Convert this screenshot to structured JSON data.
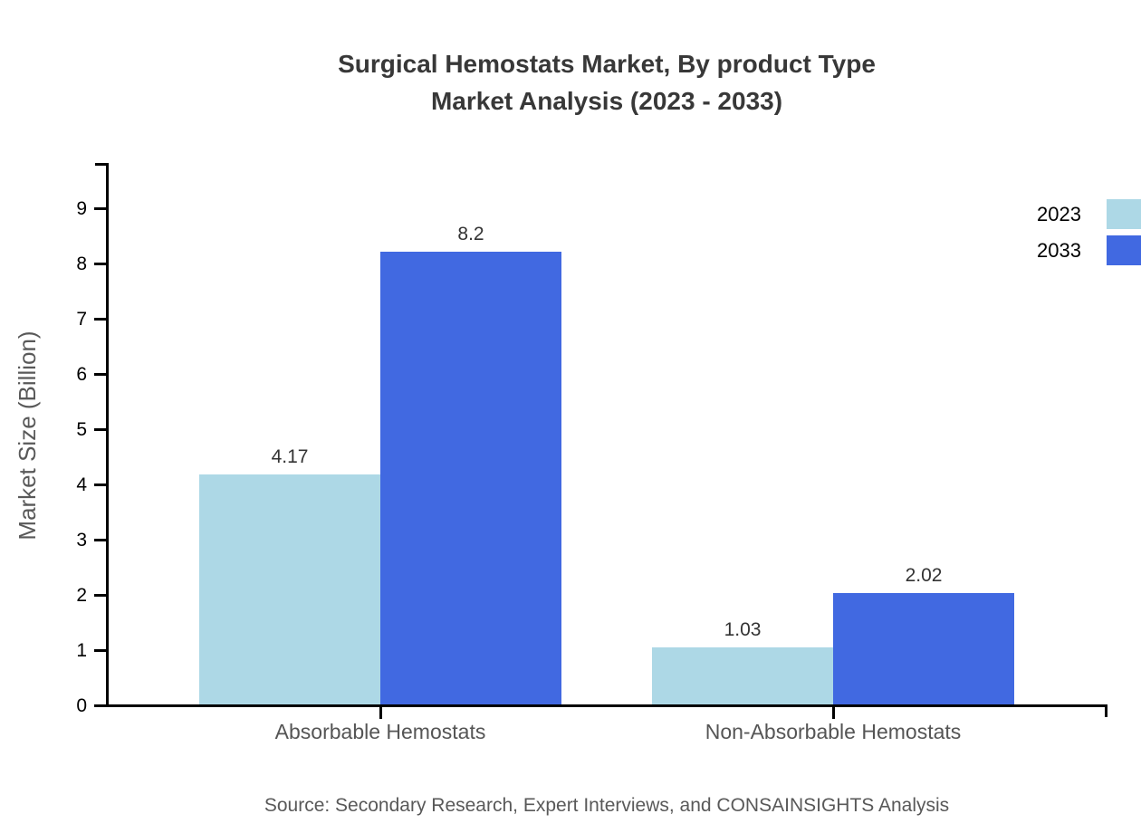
{
  "title": {
    "line1": "Surgical Hemostats Market, By product Type",
    "line2": "Market Analysis (2023 - 2033)"
  },
  "source_note": "Source: Secondary Research, Expert Interviews, and CONSAINSIGHTS Analysis",
  "chart_data": {
    "type": "bar",
    "title": "Surgical Hemostats Market, By product Type Market Analysis (2023 - 2033)",
    "categories": [
      "Absorbable Hemostats",
      "Non-Absorbable Hemostats"
    ],
    "series": [
      {
        "name": "2023",
        "color": "#ADD8E6",
        "values": [
          4.17,
          1.03
        ]
      },
      {
        "name": "2033",
        "color": "#4169E1",
        "values": [
          8.2,
          2.02
        ]
      }
    ],
    "value_labels": [
      [
        "4.17",
        "1.03"
      ],
      [
        "8.2",
        "2.02"
      ]
    ],
    "xlabel": "",
    "ylabel": "Market Size (Billion)",
    "ylim": [
      0,
      9.8
    ],
    "yticks": [
      0,
      1,
      2,
      3,
      4,
      5,
      6,
      7,
      8,
      9
    ],
    "grid": false,
    "legend_position": "top-right",
    "bar_value_labels_shown": true
  },
  "colors": {
    "axis": "#000000",
    "tick_label": "#000000",
    "category_label": "#555555",
    "value_label": "#333333",
    "title_text": "#383838",
    "muted_text": "#595959",
    "background": "#ffffff"
  }
}
